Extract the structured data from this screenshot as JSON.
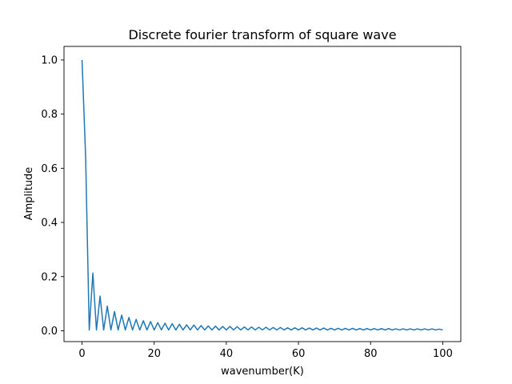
{
  "chart_data": {
    "type": "line",
    "title": "Discrete fourier transform of square wave",
    "xlabel": "wavenumber(K)",
    "ylabel": "Amplitude",
    "xlim": [
      -5,
      105
    ],
    "ylim": [
      -0.04,
      1.05
    ],
    "xticks": [
      0,
      20,
      40,
      60,
      80,
      100
    ],
    "xtick_labels": [
      "0",
      "20",
      "40",
      "60",
      "80",
      "100"
    ],
    "yticks": [
      0.0,
      0.2,
      0.4,
      0.6,
      0.8,
      1.0
    ],
    "ytick_labels": [
      "0.0",
      "0.2",
      "0.4",
      "0.6",
      "0.8",
      "1.0"
    ],
    "grid": false,
    "series": [
      {
        "color": "#1f77b4",
        "x": [
          0,
          1,
          2,
          3,
          4,
          5,
          6,
          7,
          8,
          9,
          10,
          11,
          12,
          13,
          14,
          15,
          16,
          17,
          18,
          19,
          20,
          21,
          22,
          23,
          24,
          25,
          26,
          27,
          28,
          29,
          30,
          31,
          32,
          33,
          34,
          35,
          36,
          37,
          38,
          39,
          40,
          41,
          42,
          43,
          44,
          45,
          46,
          47,
          48,
          49,
          50,
          51,
          52,
          53,
          54,
          55,
          56,
          57,
          58,
          59,
          60,
          61,
          62,
          63,
          64,
          65,
          66,
          67,
          68,
          69,
          70,
          71,
          72,
          73,
          74,
          75,
          76,
          77,
          78,
          79,
          80,
          81,
          82,
          83,
          84,
          85,
          86,
          87,
          88,
          89,
          90,
          91,
          92,
          93,
          94,
          95,
          96,
          97,
          98,
          99,
          100
        ],
        "y": [
          1.0,
          0.64,
          0.003,
          0.213,
          0.003,
          0.128,
          0.003,
          0.091,
          0.003,
          0.071,
          0.003,
          0.058,
          0.003,
          0.049,
          0.003,
          0.042,
          0.003,
          0.037,
          0.003,
          0.034,
          0.003,
          0.03,
          0.003,
          0.028,
          0.003,
          0.026,
          0.003,
          0.024,
          0.003,
          0.022,
          0.003,
          0.021,
          0.003,
          0.019,
          0.003,
          0.018,
          0.003,
          0.017,
          0.003,
          0.016,
          0.003,
          0.016,
          0.003,
          0.015,
          0.003,
          0.014,
          0.003,
          0.014,
          0.003,
          0.013,
          0.003,
          0.013,
          0.003,
          0.012,
          0.003,
          0.012,
          0.003,
          0.011,
          0.003,
          0.011,
          0.003,
          0.011,
          0.003,
          0.01,
          0.003,
          0.01,
          0.003,
          0.01,
          0.003,
          0.009,
          0.003,
          0.009,
          0.003,
          0.009,
          0.003,
          0.009,
          0.003,
          0.008,
          0.003,
          0.008,
          0.003,
          0.008,
          0.003,
          0.008,
          0.003,
          0.008,
          0.003,
          0.007,
          0.003,
          0.007,
          0.003,
          0.007,
          0.003,
          0.007,
          0.003,
          0.007,
          0.003,
          0.007,
          0.003,
          0.006,
          0.003
        ]
      }
    ]
  }
}
